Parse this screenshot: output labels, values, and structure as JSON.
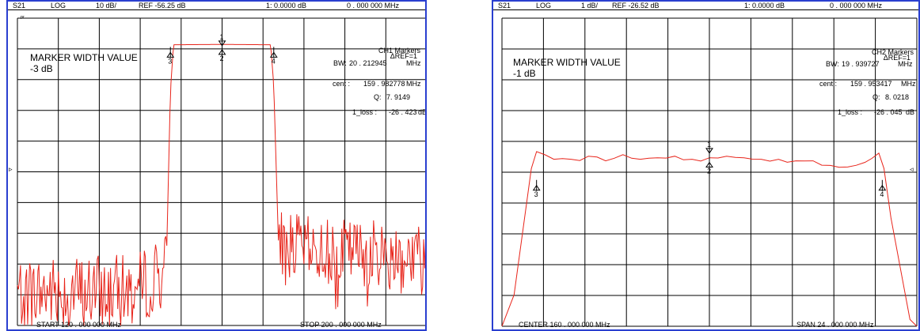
{
  "panels": [
    {
      "header": {
        "param": "S21",
        "format": "LOG",
        "scale": "10 dB/",
        "ref": "REF -56.25 dB",
        "marker_readout": "1:  0.0000    dB",
        "marker_freq": "0 . 000   000   MHz"
      },
      "small_mark": "ᵖʳ",
      "title": "MARKER WIDTH VALUE",
      "width_value": "-3 dB",
      "markers": {
        "heading": "CH1  Markers",
        "ref_line": "ΔREF=1",
        "bw_label": "BW:",
        "bw_value": "20 . 212945",
        "bw_unit": "MHz",
        "cent_label": "cent  :",
        "cent_value": "159 . 982778",
        "cent_unit": "MHz",
        "q_label": "Q:",
        "q_value": "7. 9149",
        "loss_label": "1_loss  :",
        "loss_value": "-26  . 423",
        "loss_unit": "dB"
      },
      "footer_left": "START    120 . 000   000   MHz",
      "footer_right": "STOP   200 . 000   000   MHz"
    },
    {
      "header": {
        "param": "S21",
        "format": "LOG",
        "scale": "1 dB/",
        "ref": "REF -26.52 dB",
        "marker_readout": "1:  0.0000    dB",
        "marker_freq": "0 . 000   000   MHz"
      },
      "title": "MARKER WIDTH VALUE",
      "width_value": "-1 dB",
      "markers": {
        "heading": "CH2  Markers",
        "ref_line": "ΔREF=1",
        "bw_label": "BW:",
        "bw_value": "19 . 939727",
        "bw_unit": "MHz",
        "cent_label": "cent  :",
        "cent_value": "159 . 953417",
        "cent_unit": "MHz",
        "q_label": "Q:",
        "q_value": "8. 0218",
        "loss_label": "1_loss  :",
        "loss_value": "-26  . 045",
        "loss_unit": "dB"
      },
      "footer_left": "CENTER    160 . 000   000   MHz",
      "footer_right": "SPAN    24 . 000   000   MHz"
    }
  ],
  "chart_data": [
    {
      "type": "line",
      "xlabel": "",
      "ylabel": "",
      "xlim": [
        120,
        200
      ],
      "ylim": [
        -156.25,
        -56.25
      ],
      "grid": true,
      "colors": {
        "trace": "#e8241a",
        "grid": "#000000",
        "frame": "#2a3fd0"
      },
      "series": [
        {
          "x": [
            120,
            143.2,
            149.1,
            149.9,
            150.5,
            160,
            169.5,
            170.1,
            171.0,
            176.0,
            200
          ],
          "y": [
            -145.5,
            -145.0,
            -137.5,
            -80.0,
            -64.9,
            -64.8,
            -64.9,
            -78.0,
            -128.6,
            -131.5,
            -133.5
          ]
        }
      ],
      "noise_floor_db": -137,
      "markers": [
        {
          "id": "1",
          "x": 160.0,
          "y": -65.2
        },
        {
          "id": "2",
          "x": 160.0,
          "y": -66.5
        },
        {
          "id": "3",
          "x": 149.9,
          "y": -67.4
        },
        {
          "id": "4",
          "x": 170.1,
          "y": -67.4
        }
      ]
    },
    {
      "type": "line",
      "xlabel": "",
      "ylabel": "",
      "xlim": [
        148,
        172
      ],
      "ylim": [
        -36.52,
        -26.52
      ],
      "grid": true,
      "colors": {
        "trace": "#e8241a",
        "grid": "#000000",
        "frame": "#2a3fd0"
      },
      "series": [
        {
          "x": [
            148,
            148.7,
            149.7,
            150.0,
            151,
            152,
            153,
            154,
            155,
            156,
            157,
            158,
            159,
            160,
            161,
            162,
            163,
            164,
            165,
            166,
            167,
            168,
            169,
            169.8,
            170.1,
            170.5,
            171.6,
            172
          ],
          "y": [
            -36.52,
            -35.5,
            -31.4,
            -30.85,
            -31.1,
            -31.1,
            -31.0,
            -31.15,
            -30.95,
            -31.1,
            -31.05,
            -31.0,
            -31.1,
            -31.05,
            -31.0,
            -31.05,
            -31.1,
            -31.1,
            -31.15,
            -31.15,
            -31.3,
            -31.35,
            -31.2,
            -30.9,
            -31.4,
            -33.0,
            -36.3,
            -36.52
          ]
        }
      ],
      "markers": [
        {
          "id": "1",
          "x": 160.0,
          "y": -30.9
        },
        {
          "id": "2",
          "x": 160.0,
          "y": -31.2
        },
        {
          "id": "3",
          "x": 150.0,
          "y": -31.95
        },
        {
          "id": "4",
          "x": 170.0,
          "y": -31.95
        }
      ]
    }
  ]
}
